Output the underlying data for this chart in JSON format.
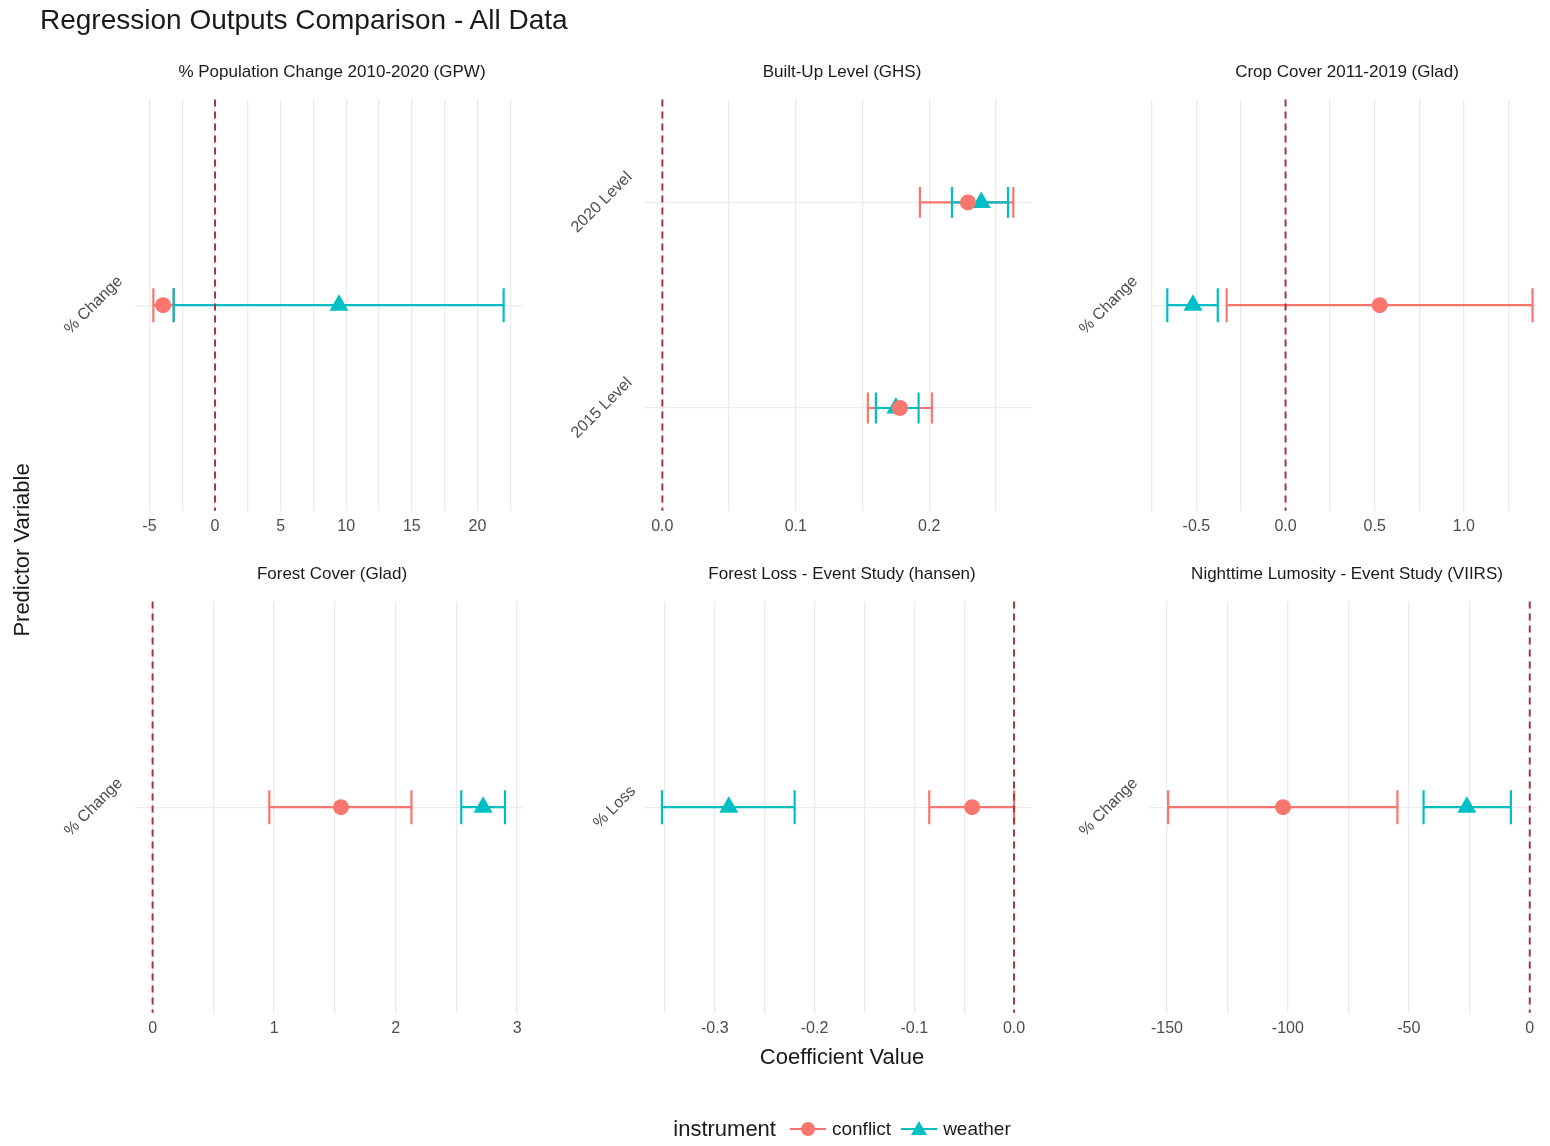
{
  "chart_data": [
    {
      "type": "scatter",
      "orientation": "horizontal",
      "title": "Regression Outputs Comparison - All Data",
      "subtitle": "% Population Change 2010-2020 (GPW)",
      "ylabel": "Predictor Variable",
      "categories": [
        "% Change"
      ],
      "xlim": [
        -6.1,
        23.4
      ],
      "xticks": [
        -5,
        {
          "value": -2.5,
          "label": null
        },
        0,
        {
          "value": 2.5,
          "label": null
        },
        5,
        {
          "value": 7.5,
          "label": null
        },
        10,
        {
          "value": 12.5,
          "label": null
        },
        15,
        {
          "value": 17.5,
          "label": null
        },
        20,
        {
          "value": 22.5,
          "label": null
        }
      ],
      "grid": true,
      "ref_lines": [
        {
          "axis": "x",
          "value": 0,
          "color": "#a33a3a",
          "line_style": "dashed"
        }
      ],
      "series": [
        {
          "color": "#f8766d",
          "marker": "circle",
          "values": [
            -3.96
          ],
          "errors": [
            [
              -4.7,
              -3.15
            ]
          ]
        },
        {
          "color": "#00bfc4",
          "marker": "triangle",
          "values": [
            9.45
          ],
          "errors": [
            [
              -3.15,
              22.0
            ]
          ]
        }
      ]
    },
    {
      "type": "scatter",
      "orientation": "horizontal",
      "title": "Built-Up Level (GHS)",
      "categories": [
        "2020 Level",
        "2015 Level"
      ],
      "xlim": [
        -0.013,
        0.277
      ],
      "xticks": [
        {
          "value": 0,
          "label": "0.0"
        },
        {
          "value": 0.05,
          "label": null
        },
        0.1,
        {
          "value": 0.15,
          "label": null
        },
        0.2,
        {
          "value": 0.25,
          "label": null
        }
      ],
      "grid": true,
      "ref_lines": [
        {
          "axis": "x",
          "value": 0,
          "color": "#a33a3a",
          "line_style": "dashed"
        }
      ],
      "series": [
        {
          "color": "#f8766d",
          "marker": "circle",
          "values": [
            0.229,
            0.178
          ],
          "errors": [
            [
              0.193,
              0.263
            ],
            [
              0.154,
              0.202
            ]
          ]
        },
        {
          "color": "#00bfc4",
          "marker": "triangle",
          "values": [
            0.239,
            0.175
          ],
          "errors": [
            [
              0.217,
              0.259
            ],
            [
              0.16,
              0.192
            ]
          ]
        }
      ]
    },
    {
      "type": "scatter",
      "orientation": "horizontal",
      "title": "Crop Cover 2011-2019 (Glad)",
      "categories": [
        "% Change"
      ],
      "xlim": [
        -0.76,
        1.41
      ],
      "xticks": [
        {
          "value": -0.75,
          "label": null
        },
        -0.5,
        {
          "value": -0.25,
          "label": null
        },
        {
          "value": 0,
          "label": "0.0"
        },
        {
          "value": 0.25,
          "label": null
        },
        0.5,
        {
          "value": 0.75,
          "label": null
        },
        {
          "value": 1,
          "label": "1.0"
        },
        {
          "value": 1.25,
          "label": null
        }
      ],
      "grid": true,
      "ref_lines": [
        {
          "axis": "x",
          "value": 0,
          "color": "#a33a3a",
          "line_style": "dashed"
        }
      ],
      "series": [
        {
          "color": "#f8766d",
          "marker": "circle",
          "values": [
            0.528
          ],
          "errors": [
            [
              -0.33,
              1.385
            ]
          ]
        },
        {
          "color": "#00bfc4",
          "marker": "triangle",
          "values": [
            -0.519
          ],
          "errors": [
            [
              -0.663,
              -0.38
            ]
          ]
        }
      ]
    },
    {
      "type": "scatter",
      "orientation": "horizontal",
      "title": "Forest Cover (Glad)",
      "categories": [
        "% Change"
      ],
      "xlim": [
        -0.145,
        3.04
      ],
      "xticks": [
        0,
        {
          "value": 0.5,
          "label": null
        },
        1,
        {
          "value": 1.5,
          "label": null
        },
        2,
        {
          "value": 2.5,
          "label": null
        },
        3
      ],
      "grid": true,
      "ref_lines": [
        {
          "axis": "x",
          "value": 0,
          "color": "#a33a3a",
          "line_style": "dashed"
        }
      ],
      "series": [
        {
          "color": "#f8766d",
          "marker": "circle",
          "values": [
            1.55
          ],
          "errors": [
            [
              0.96,
              2.13
            ]
          ]
        },
        {
          "color": "#00bfc4",
          "marker": "triangle",
          "values": [
            2.72
          ],
          "errors": [
            [
              2.54,
              2.9
            ]
          ]
        }
      ]
    },
    {
      "type": "scatter",
      "orientation": "horizontal",
      "title": "Forest Loss - Event Study (hansen)",
      "xlabel": "Coefficient Value",
      "legend": "bottom",
      "legend_title": "instrument",
      "categories": [
        "% Loss"
      ],
      "xlim": [
        -0.37,
        0.018
      ],
      "xticks": [
        {
          "value": -0.35,
          "label": null
        },
        -0.3,
        {
          "value": -0.25,
          "label": null
        },
        -0.2,
        {
          "value": -0.15,
          "label": null
        },
        -0.1,
        {
          "value": -0.05,
          "label": null
        },
        {
          "value": 0,
          "label": "0.0"
        }
      ],
      "grid": true,
      "ref_lines": [
        {
          "axis": "x",
          "value": 0,
          "color": "#a33a3a",
          "line_style": "dashed"
        }
      ],
      "series": [
        {
          "name": "conflict",
          "color": "#f8766d",
          "marker": "circle",
          "values": [
            -0.042
          ],
          "errors": [
            [
              -0.085,
              0.0
            ]
          ]
        },
        {
          "name": "weather",
          "color": "#00bfc4",
          "marker": "triangle",
          "values": [
            -0.286
          ],
          "errors": [
            [
              -0.353,
              -0.22
            ]
          ]
        }
      ]
    },
    {
      "type": "scatter",
      "orientation": "horizontal",
      "title": "Nighttime Lumosity - Event Study (VIIRS)",
      "categories": [
        "% Change"
      ],
      "xlim": [
        -157,
        3
      ],
      "xticks": [
        -150,
        {
          "value": -125,
          "label": null
        },
        -100,
        {
          "value": -75,
          "label": null
        },
        -50,
        {
          "value": -25,
          "label": null
        },
        0
      ],
      "grid": true,
      "ref_lines": [
        {
          "axis": "x",
          "value": 0,
          "color": "#a33a3a",
          "line_style": "dashed"
        }
      ],
      "series": [
        {
          "color": "#f8766d",
          "marker": "circle",
          "values": [
            -102
          ],
          "errors": [
            [
              -149.5,
              -54.7
            ]
          ]
        },
        {
          "color": "#00bfc4",
          "marker": "triangle",
          "values": [
            -26
          ],
          "errors": [
            [
              -43.9,
              -7.8
            ]
          ]
        }
      ]
    }
  ]
}
